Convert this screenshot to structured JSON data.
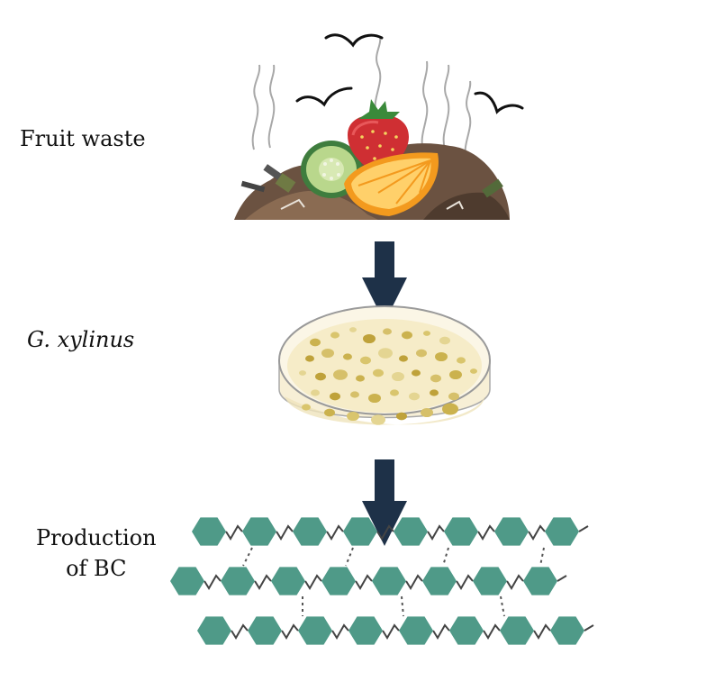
{
  "labels": {
    "fruit_waste": "Fruit waste",
    "organism": "G. xylinus",
    "production_line1": "Production",
    "production_line2": "of BC"
  },
  "colors": {
    "arrow": "#1e3148",
    "hexagon": "#4f9a88",
    "soil": "#6b5241",
    "strawberry": "#cf2f33",
    "orange": "#f39a1e",
    "cucumber": "#b9d78c",
    "petri_medium": "#f6ecc8",
    "colony": "#cbb24e"
  },
  "icons": [
    "fruit-waste-heap",
    "steam-lines",
    "fly-icon",
    "petri-dish",
    "cellulose-chain",
    "flow-arrow"
  ]
}
